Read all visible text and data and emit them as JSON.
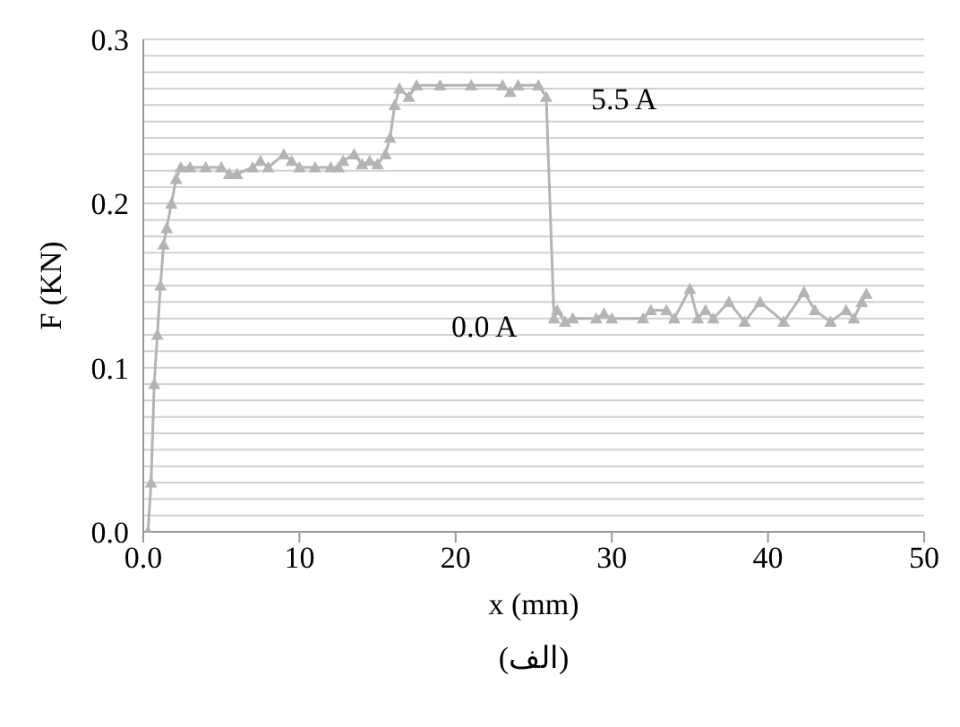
{
  "chart_data": {
    "type": "line",
    "xlabel": "x (mm)",
    "ylabel": "F (KN)",
    "x": [
      0.3,
      0.5,
      0.7,
      0.9,
      1.1,
      1.3,
      1.5,
      1.8,
      2.1,
      2.4,
      3,
      4,
      5,
      5.5,
      6,
      7,
      7.5,
      8,
      9,
      9.5,
      10,
      11,
      12,
      12.5,
      12.8,
      13.5,
      14,
      14.5,
      15,
      15.5,
      15.8,
      16.1,
      16.4,
      17,
      17.5,
      19,
      21,
      23,
      23.5,
      24,
      25.3,
      25.8,
      26.3,
      26.5,
      27,
      27.5,
      29,
      29.5,
      30,
      32,
      32.5,
      33.5,
      34,
      35,
      35.5,
      36,
      36.5,
      37.5,
      38.5,
      39.5,
      41,
      42.3,
      43,
      44,
      45,
      45.5,
      46,
      46.3
    ],
    "series": [
      {
        "color": "#b4b4b4",
        "values": [
          0,
          0.03,
          0.09,
          0.12,
          0.15,
          0.175,
          0.185,
          0.2,
          0.215,
          0.222,
          0.222,
          0.222,
          0.222,
          0.218,
          0.218,
          0.222,
          0.226,
          0.222,
          0.23,
          0.226,
          0.222,
          0.222,
          0.222,
          0.222,
          0.226,
          0.23,
          0.224,
          0.226,
          0.224,
          0.23,
          0.24,
          0.26,
          0.27,
          0.265,
          0.272,
          0.272,
          0.272,
          0.272,
          0.268,
          0.272,
          0.272,
          0.265,
          0.13,
          0.135,
          0.128,
          0.13,
          0.13,
          0.133,
          0.13,
          0.13,
          0.135,
          0.135,
          0.13,
          0.148,
          0.13,
          0.135,
          0.13,
          0.14,
          0.128,
          0.14,
          0.128,
          0.146,
          0.135,
          0.128,
          0.135,
          0.13,
          0.14,
          0.145
        ]
      }
    ],
    "xlim": [
      0,
      50
    ],
    "xticks": [
      {
        "value": 0,
        "label": "0.0"
      },
      10,
      20,
      30,
      40,
      50
    ],
    "ylim": [
      0,
      0.3
    ],
    "yticks": [
      {
        "value": 0,
        "label": "0.0"
      },
      {
        "value": 0.01,
        "label": null
      },
      {
        "value": 0.02,
        "label": null
      },
      {
        "value": 0.03,
        "label": null
      },
      {
        "value": 0.04,
        "label": null
      },
      {
        "value": 0.05,
        "label": null
      },
      {
        "value": 0.06,
        "label": null
      },
      {
        "value": 0.07,
        "label": null
      },
      {
        "value": 0.08,
        "label": null
      },
      {
        "value": 0.09,
        "label": null
      },
      0.1,
      {
        "value": 0.11,
        "label": null
      },
      {
        "value": 0.12,
        "label": null
      },
      {
        "value": 0.13,
        "label": null
      },
      {
        "value": 0.14,
        "label": null
      },
      {
        "value": 0.15,
        "label": null
      },
      {
        "value": 0.16,
        "label": null
      },
      {
        "value": 0.17,
        "label": null
      },
      {
        "value": 0.18,
        "label": null
      },
      {
        "value": 0.19,
        "label": null
      },
      0.2,
      {
        "value": 0.21,
        "label": null
      },
      {
        "value": 0.22,
        "label": null
      },
      {
        "value": 0.23,
        "label": null
      },
      {
        "value": 0.24,
        "label": null
      },
      {
        "value": 0.25,
        "label": null
      },
      {
        "value": 0.26,
        "label": null
      },
      {
        "value": 0.27,
        "label": null
      },
      {
        "value": 0.28,
        "label": null
      },
      {
        "value": 0.29,
        "label": null
      },
      0.3
    ],
    "grid": "y",
    "marker": "triangle",
    "line_style": "solid",
    "annotations": [
      "5.5 A",
      "0.0 A",
      "(الف)"
    ]
  }
}
